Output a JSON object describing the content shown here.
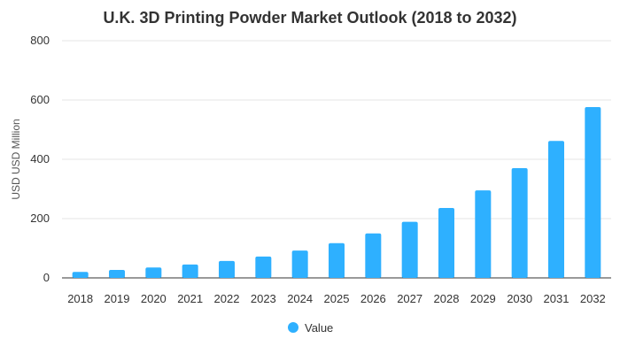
{
  "chart_data": {
    "type": "bar",
    "title": "U.K. 3D Printing Powder Market Outlook (2018 to 2032)",
    "xlabel": "",
    "ylabel": "USD USD Million",
    "ylim": [
      0,
      800
    ],
    "yticks": [
      0,
      200,
      400,
      600,
      800
    ],
    "grid": true,
    "legend_position": "bottom",
    "categories": [
      "2018",
      "2019",
      "2020",
      "2021",
      "2022",
      "2023",
      "2024",
      "2025",
      "2026",
      "2027",
      "2028",
      "2029",
      "2030",
      "2031",
      "2032"
    ],
    "series": [
      {
        "name": "Value",
        "color": "#2eb0ff",
        "values": [
          20,
          27,
          35,
          45,
          57,
          72,
          92,
          117,
          150,
          189,
          236,
          295,
          370,
          462,
          576
        ]
      }
    ]
  }
}
